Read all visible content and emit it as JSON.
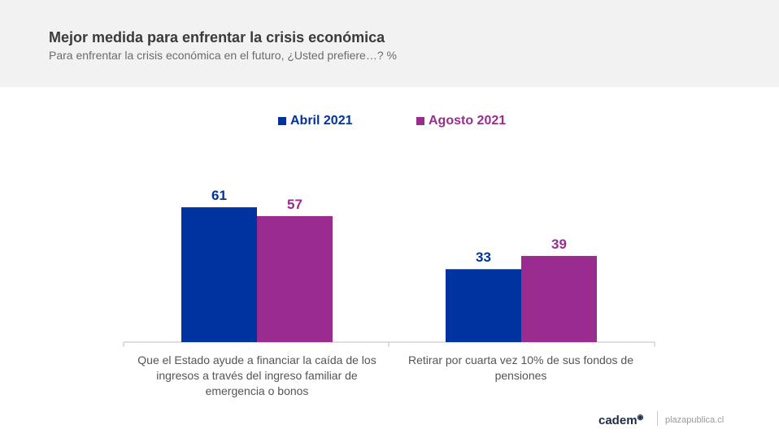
{
  "header": {
    "title": "Mejor medida para enfrentar la crisis económica",
    "subtitle": "Para enfrentar la crisis económica en el futuro, ¿Usted prefiere…? %"
  },
  "footer": {
    "brand": "cadem",
    "site": "plazapublica.cl"
  },
  "chart_data": {
    "type": "bar",
    "title": "Mejor medida para enfrentar la crisis económica",
    "subtitle": "Para enfrentar la crisis económica en el futuro, ¿Usted prefiere…? %",
    "categories": [
      "Que el Estado ayude a financiar la caída de los ingresos a través del ingreso familiar de emergencia o bonos",
      "Retirar por cuarta vez 10% de sus fondos de pensiones"
    ],
    "series": [
      {
        "name": "Abril 2021",
        "values": [
          61,
          33
        ],
        "color": "#0033a0"
      },
      {
        "name": "Agosto 2021",
        "values": [
          57,
          39
        ],
        "color": "#9b2c8f"
      }
    ],
    "ylim": [
      0,
      100
    ],
    "grid": false,
    "legend_position": "top-center",
    "data_labels": true
  }
}
